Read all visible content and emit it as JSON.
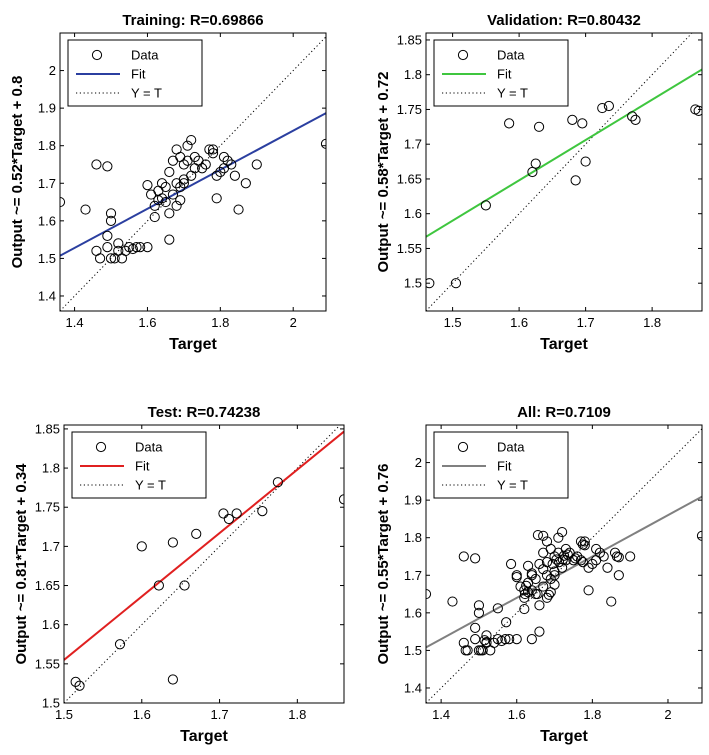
{
  "chart_data": [
    {
      "type": "scatter",
      "title": "Training: R=0.69866",
      "xlabel": "Target",
      "ylabel": "Output ~= 0.52*Target + 0.8",
      "xlim": [
        1.36,
        2.09
      ],
      "ylim": [
        1.36,
        2.1
      ],
      "xticks": [
        "1.4",
        "1.6",
        "1.8",
        "2"
      ],
      "yticks": [
        "1.4",
        "1.5",
        "1.6",
        "1.7",
        "1.8",
        "1.9",
        "2"
      ],
      "grid": false,
      "legend_position": "top-left",
      "legend": [
        "Data",
        "Fit",
        "Y = T"
      ],
      "fit": {
        "slope": 0.52,
        "intercept": 0.8,
        "color": "#2b3fa0"
      },
      "series": [
        {
          "name": "Data",
          "points": [
            [
              1.36,
              1.65
            ],
            [
              1.43,
              1.63
            ],
            [
              1.46,
              1.52
            ],
            [
              1.47,
              1.5
            ],
            [
              1.46,
              1.75
            ],
            [
              1.49,
              1.745
            ],
            [
              1.5,
              1.62
            ],
            [
              1.5,
              1.6
            ],
            [
              1.49,
              1.56
            ],
            [
              1.49,
              1.53
            ],
            [
              1.5,
              1.5
            ],
            [
              1.51,
              1.5
            ],
            [
              1.52,
              1.52
            ],
            [
              1.53,
              1.5
            ],
            [
              1.52,
              1.54
            ],
            [
              1.54,
              1.52
            ],
            [
              1.55,
              1.53
            ],
            [
              1.56,
              1.525
            ],
            [
              1.57,
              1.53
            ],
            [
              1.58,
              1.53
            ],
            [
              1.6,
              1.53
            ],
            [
              1.6,
              1.695
            ],
            [
              1.61,
              1.67
            ],
            [
              1.62,
              1.64
            ],
            [
              1.62,
              1.61
            ],
            [
              1.63,
              1.655
            ],
            [
              1.63,
              1.68
            ],
            [
              1.64,
              1.66
            ],
            [
              1.64,
              1.7
            ],
            [
              1.65,
              1.65
            ],
            [
              1.65,
              1.69
            ],
            [
              1.66,
              1.73
            ],
            [
              1.66,
              1.62
            ],
            [
              1.66,
              1.55
            ],
            [
              1.67,
              1.67
            ],
            [
              1.67,
              1.76
            ],
            [
              1.68,
              1.79
            ],
            [
              1.68,
              1.64
            ],
            [
              1.69,
              1.655
            ],
            [
              1.69,
              1.69
            ],
            [
              1.7,
              1.7
            ],
            [
              1.7,
              1.75
            ],
            [
              1.71,
              1.76
            ],
            [
              1.71,
              1.8
            ],
            [
              1.72,
              1.815
            ],
            [
              1.72,
              1.72
            ],
            [
              1.73,
              1.77
            ],
            [
              1.73,
              1.74
            ],
            [
              1.74,
              1.76
            ],
            [
              1.75,
              1.74
            ],
            [
              1.76,
              1.75
            ],
            [
              1.77,
              1.79
            ],
            [
              1.78,
              1.79
            ],
            [
              1.78,
              1.78
            ],
            [
              1.79,
              1.72
            ],
            [
              1.79,
              1.66
            ],
            [
              1.8,
              1.73
            ],
            [
              1.81,
              1.74
            ],
            [
              1.81,
              1.77
            ],
            [
              1.82,
              1.76
            ],
            [
              1.83,
              1.75
            ],
            [
              1.84,
              1.72
            ],
            [
              1.85,
              1.63
            ],
            [
              1.87,
              1.7
            ],
            [
              1.9,
              1.75
            ],
            [
              1.68,
              1.7
            ],
            [
              1.69,
              1.77
            ],
            [
              1.7,
              1.71
            ],
            [
              2.09,
              1.805
            ]
          ]
        }
      ]
    },
    {
      "type": "scatter",
      "title": "Validation: R=0.80432",
      "xlabel": "Target",
      "ylabel": "Output ~= 0.58*Target + 0.72",
      "xlim": [
        1.46,
        1.875
      ],
      "ylim": [
        1.46,
        1.86
      ],
      "xticks": [
        "1.5",
        "1.6",
        "1.7",
        "1.8"
      ],
      "yticks": [
        "1.5",
        "1.55",
        "1.6",
        "1.65",
        "1.7",
        "1.75",
        "1.8",
        "1.85"
      ],
      "grid": false,
      "legend_position": "top-left",
      "legend": [
        "Data",
        "Fit",
        "Y = T"
      ],
      "fit": {
        "slope": 0.58,
        "intercept": 0.72,
        "color": "#3fc63f"
      },
      "series": [
        {
          "name": "Data",
          "points": [
            [
              1.465,
              1.5
            ],
            [
              1.505,
              1.5
            ],
            [
              1.55,
              1.612
            ],
            [
              1.585,
              1.73
            ],
            [
              1.62,
              1.66
            ],
            [
              1.625,
              1.672
            ],
            [
              1.63,
              1.725
            ],
            [
              1.685,
              1.648
            ],
            [
              1.68,
              1.735
            ],
            [
              1.695,
              1.73
            ],
            [
              1.7,
              1.675
            ],
            [
              1.725,
              1.752
            ],
            [
              1.735,
              1.755
            ],
            [
              1.77,
              1.74
            ],
            [
              1.775,
              1.735
            ],
            [
              1.865,
              1.75
            ],
            [
              1.87,
              1.748
            ]
          ]
        }
      ]
    },
    {
      "type": "scatter",
      "title": "Test: R=0.74238",
      "xlabel": "Target",
      "ylabel": "Output ~= 0.81*Target + 0.34",
      "xlim": [
        1.5,
        1.86
      ],
      "ylim": [
        1.5,
        1.855
      ],
      "xticks": [
        "1.5",
        "1.6",
        "1.7",
        "1.8"
      ],
      "yticks": [
        "1.5",
        "1.55",
        "1.6",
        "1.65",
        "1.7",
        "1.75",
        "1.8",
        "1.85"
      ],
      "grid": false,
      "legend_position": "top-left",
      "legend": [
        "Data",
        "Fit",
        "Y = T"
      ],
      "fit": {
        "slope": 0.81,
        "intercept": 0.34,
        "color": "#e02020"
      },
      "series": [
        {
          "name": "Data",
          "points": [
            [
              1.515,
              1.527
            ],
            [
              1.52,
              1.522
            ],
            [
              1.572,
              1.575
            ],
            [
              1.6,
              1.7
            ],
            [
              1.622,
              1.65
            ],
            [
              1.64,
              1.705
            ],
            [
              1.64,
              1.53
            ],
            [
              1.655,
              1.65
            ],
            [
              1.656,
              1.807
            ],
            [
              1.67,
              1.805
            ],
            [
              1.67,
              1.716
            ],
            [
              1.705,
              1.742
            ],
            [
              1.712,
              1.735
            ],
            [
              1.722,
              1.742
            ],
            [
              1.755,
              1.745
            ],
            [
              1.775,
              1.782
            ],
            [
              1.86,
              1.76
            ]
          ]
        }
      ]
    },
    {
      "type": "scatter",
      "title": "All: R=0.7109",
      "xlabel": "Target",
      "ylabel": "Output ~= 0.55*Target + 0.76",
      "xlim": [
        1.36,
        2.09
      ],
      "ylim": [
        1.36,
        2.1
      ],
      "xticks": [
        "1.4",
        "1.6",
        "1.8",
        "2"
      ],
      "yticks": [
        "1.4",
        "1.5",
        "1.6",
        "1.7",
        "1.8",
        "1.9",
        "2"
      ],
      "grid": false,
      "legend_position": "top-left",
      "legend": [
        "Data",
        "Fit",
        "Y = T"
      ],
      "fit": {
        "slope": 0.55,
        "intercept": 0.76,
        "color": "#808080"
      },
      "series": [
        {
          "name": "Data",
          "points": [
            [
              1.36,
              1.65
            ],
            [
              1.43,
              1.63
            ],
            [
              1.46,
              1.52
            ],
            [
              1.47,
              1.5
            ],
            [
              1.46,
              1.75
            ],
            [
              1.49,
              1.745
            ],
            [
              1.5,
              1.62
            ],
            [
              1.5,
              1.6
            ],
            [
              1.49,
              1.56
            ],
            [
              1.49,
              1.53
            ],
            [
              1.5,
              1.5
            ],
            [
              1.51,
              1.5
            ],
            [
              1.52,
              1.52
            ],
            [
              1.53,
              1.5
            ],
            [
              1.52,
              1.54
            ],
            [
              1.54,
              1.52
            ],
            [
              1.55,
              1.53
            ],
            [
              1.56,
              1.525
            ],
            [
              1.57,
              1.53
            ],
            [
              1.58,
              1.53
            ],
            [
              1.6,
              1.53
            ],
            [
              1.6,
              1.695
            ],
            [
              1.61,
              1.67
            ],
            [
              1.62,
              1.64
            ],
            [
              1.62,
              1.61
            ],
            [
              1.63,
              1.655
            ],
            [
              1.63,
              1.68
            ],
            [
              1.64,
              1.66
            ],
            [
              1.64,
              1.7
            ],
            [
              1.65,
              1.65
            ],
            [
              1.65,
              1.69
            ],
            [
              1.66,
              1.73
            ],
            [
              1.66,
              1.62
            ],
            [
              1.66,
              1.55
            ],
            [
              1.67,
              1.67
            ],
            [
              1.67,
              1.76
            ],
            [
              1.68,
              1.79
            ],
            [
              1.68,
              1.64
            ],
            [
              1.69,
              1.655
            ],
            [
              1.69,
              1.69
            ],
            [
              1.7,
              1.7
            ],
            [
              1.7,
              1.75
            ],
            [
              1.71,
              1.76
            ],
            [
              1.71,
              1.8
            ],
            [
              1.72,
              1.815
            ],
            [
              1.72,
              1.72
            ],
            [
              1.73,
              1.77
            ],
            [
              1.73,
              1.74
            ],
            [
              1.74,
              1.76
            ],
            [
              1.75,
              1.74
            ],
            [
              1.76,
              1.75
            ],
            [
              1.77,
              1.79
            ],
            [
              1.78,
              1.79
            ],
            [
              1.78,
              1.78
            ],
            [
              1.79,
              1.72
            ],
            [
              1.79,
              1.66
            ],
            [
              1.8,
              1.73
            ],
            [
              1.81,
              1.74
            ],
            [
              1.81,
              1.77
            ],
            [
              1.82,
              1.76
            ],
            [
              1.83,
              1.75
            ],
            [
              1.84,
              1.72
            ],
            [
              1.85,
              1.63
            ],
            [
              1.87,
              1.7
            ],
            [
              1.9,
              1.75
            ],
            [
              1.68,
              1.7
            ],
            [
              1.69,
              1.77
            ],
            [
              1.7,
              1.71
            ],
            [
              2.09,
              1.805
            ],
            [
              1.465,
              1.5
            ],
            [
              1.505,
              1.5
            ],
            [
              1.55,
              1.612
            ],
            [
              1.585,
              1.73
            ],
            [
              1.62,
              1.66
            ],
            [
              1.625,
              1.672
            ],
            [
              1.63,
              1.725
            ],
            [
              1.685,
              1.648
            ],
            [
              1.68,
              1.735
            ],
            [
              1.695,
              1.73
            ],
            [
              1.7,
              1.675
            ],
            [
              1.725,
              1.752
            ],
            [
              1.735,
              1.755
            ],
            [
              1.77,
              1.74
            ],
            [
              1.775,
              1.735
            ],
            [
              1.865,
              1.75
            ],
            [
              1.87,
              1.748
            ],
            [
              1.515,
              1.527
            ],
            [
              1.52,
              1.522
            ],
            [
              1.572,
              1.575
            ],
            [
              1.6,
              1.7
            ],
            [
              1.622,
              1.65
            ],
            [
              1.64,
              1.705
            ],
            [
              1.64,
              1.53
            ],
            [
              1.655,
              1.65
            ],
            [
              1.656,
              1.807
            ],
            [
              1.67,
              1.805
            ],
            [
              1.67,
              1.716
            ],
            [
              1.705,
              1.742
            ],
            [
              1.712,
              1.735
            ],
            [
              1.722,
              1.742
            ],
            [
              1.755,
              1.745
            ],
            [
              1.775,
              1.782
            ],
            [
              1.86,
              1.76
            ]
          ]
        }
      ]
    }
  ]
}
